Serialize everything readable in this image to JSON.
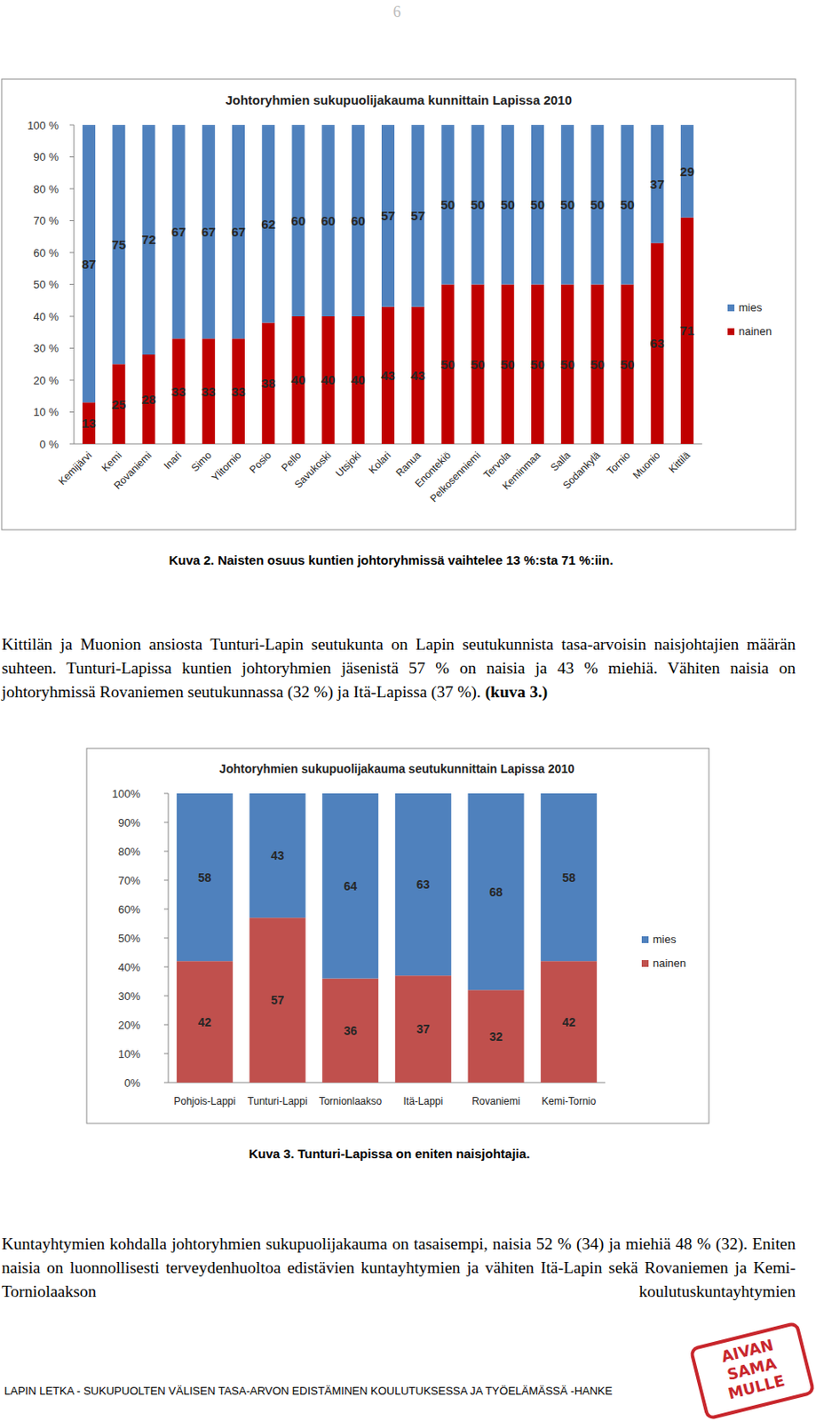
{
  "page_number": "6",
  "chart_data": [
    {
      "type": "bar",
      "stacked": true,
      "data_labels": true,
      "grid": false,
      "legend": "right",
      "title": "Johtoryhmien sukupuolijakauma kunnittain Lapissa 2010",
      "categories": [
        "Kemijärvi",
        "Kemi",
        "Rovaniemi",
        "Inari",
        "Simo",
        "Ylitornio",
        "Posio",
        "Pello",
        "Savukoski",
        "Utsjoki",
        "Kolari",
        "Ranua",
        "Enontekiö",
        "Pelkosenniemi",
        "Tervola",
        "Keminmaa",
        "Salla",
        "Sodankylä",
        "Tornio",
        "Muonio",
        "Kittilä"
      ],
      "series": [
        {
          "name": "nainen",
          "color": "#c00000",
          "values": [
            13,
            25,
            28,
            33,
            33,
            33,
            38,
            40,
            40,
            40,
            43,
            43,
            50,
            50,
            50,
            50,
            50,
            50,
            50,
            63,
            71
          ]
        },
        {
          "name": "mies",
          "color": "#4f81bd",
          "values": [
            87,
            75,
            72,
            67,
            67,
            67,
            62,
            60,
            60,
            60,
            57,
            57,
            50,
            50,
            50,
            50,
            50,
            50,
            50,
            37,
            29
          ]
        }
      ],
      "ylim": [
        0,
        100
      ],
      "yticks": [
        {
          "value": 0,
          "label": "0 %"
        },
        {
          "value": 10,
          "label": "10 %"
        },
        {
          "value": 20,
          "label": "20 %"
        },
        {
          "value": 30,
          "label": "30 %"
        },
        {
          "value": 40,
          "label": "40 %"
        },
        {
          "value": 50,
          "label": "50 %"
        },
        {
          "value": 60,
          "label": "60 %"
        },
        {
          "value": 70,
          "label": "70 %"
        },
        {
          "value": 80,
          "label": "80 %"
        },
        {
          "value": 90,
          "label": "90 %"
        },
        {
          "value": 100,
          "label": "100 %"
        }
      ]
    },
    {
      "type": "bar",
      "stacked": true,
      "data_labels": true,
      "grid": false,
      "legend": "right",
      "title": "Johtoryhmien sukupuolijakauma seutukunnittain Lapissa 2010",
      "categories": [
        "Pohjois-Lappi",
        "Tunturi-Lappi",
        "Tornionlaakso",
        "Itä-Lappi",
        "Rovaniemi",
        "Kemi-Tornio"
      ],
      "series": [
        {
          "name": "nainen",
          "color": "#c0504d",
          "values": [
            42,
            57,
            36,
            37,
            32,
            42
          ]
        },
        {
          "name": "mies",
          "color": "#4f81bd",
          "values": [
            58,
            43,
            64,
            63,
            68,
            58
          ]
        }
      ],
      "ylim": [
        0,
        100
      ],
      "yticks": [
        {
          "value": 0,
          "label": "0%"
        },
        {
          "value": 10,
          "label": "10%"
        },
        {
          "value": 20,
          "label": "20%"
        },
        {
          "value": 30,
          "label": "30%"
        },
        {
          "value": 40,
          "label": "40%"
        },
        {
          "value": 50,
          "label": "50%"
        },
        {
          "value": 60,
          "label": "60%"
        },
        {
          "value": 70,
          "label": "70%"
        },
        {
          "value": 80,
          "label": "80%"
        },
        {
          "value": 90,
          "label": "90%"
        },
        {
          "value": 100,
          "label": "100%"
        }
      ]
    }
  ],
  "captions": [
    "Kuva 2. Naisten osuus kuntien johtoryhmissä vaihtelee 13 %:sta 71 %:iin.",
    "Kuva 3. Tunturi-Lapissa on eniten naisjohtajia."
  ],
  "paragraphs": [
    {
      "text": "Kittilän ja Muonion ansiosta Tunturi-Lapin seutukunta on Lapin seutukunnista tasa-arvoisin naisjohtajien määrän suhteen. Tunturi-Lapissa kuntien johtoryhmien jäsenistä 57 % on naisia ja 43 % miehiä. Vähiten naisia on johtoryhmissä Rovaniemen seutukunnassa (32 %) ja Itä-Lapissa (37 %).",
      "reference": "(kuva 3.)"
    },
    {
      "text": "Kuntayhtymien kohdalla johtoryhmien sukupuolijakauma on tasaisempi, naisia 52 % (34) ja miehiä 48 % (32). Eniten naisia on luonnollisesti terveydenhuoltoa edistävien kuntayhtymien ja vähiten Itä-Lapin sekä Rovaniemen ja Kemi-Torniolaakson koulutuskuntayhtymien"
    }
  ],
  "footer": "LAPIN LETKA - SUKUPUOLTEN VÄLISEN TASA-ARVON EDISTÄMINEN KOULUTUKSESSA JA TYÖELÄMÄSSÄ -HANKE",
  "logo": [
    "AIVAN",
    "SAMA",
    "MULLE"
  ]
}
